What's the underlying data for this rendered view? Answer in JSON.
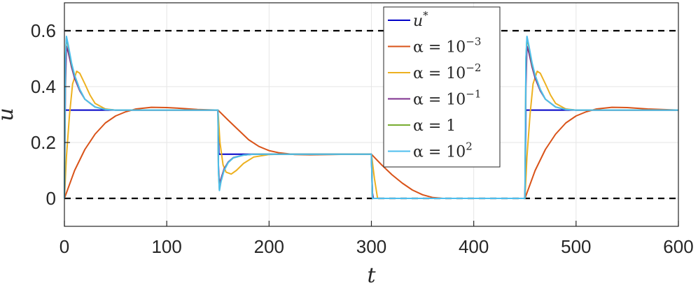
{
  "chart_data": {
    "type": "line",
    "xlabel": "t",
    "ylabel": "u",
    "xlim": [
      0,
      600
    ],
    "ylim": [
      -0.1,
      0.7
    ],
    "xticks": [
      0,
      100,
      200,
      300,
      400,
      500,
      600
    ],
    "yticks": [
      0,
      0.2,
      0.4,
      0.6
    ],
    "xtick_labels": [
      "0",
      "100",
      "200",
      "300",
      "400",
      "500",
      "600"
    ],
    "ytick_labels": [
      "0",
      "0.2",
      "0.4",
      "0.6"
    ],
    "grid": true,
    "legend_position": "top-right",
    "reference_lines": [
      {
        "y": 0.6,
        "style": "dashed",
        "color": "#000000"
      },
      {
        "y": 0,
        "style": "dashed",
        "color": "#000000"
      }
    ],
    "series": [
      {
        "name": "u*",
        "legend": {
          "base": "u",
          "sup": "*"
        },
        "color": "#0000c8",
        "x": [
          0,
          1,
          150,
          151,
          300,
          301,
          450,
          451,
          600
        ],
        "y": [
          0.316,
          0.316,
          0.316,
          0.158,
          0.158,
          0.0,
          0.0,
          0.316,
          0.316
        ]
      },
      {
        "name": "α = 10^-3",
        "legend": {
          "base": "α = 10",
          "sup": "−3"
        },
        "color": "#d95319",
        "x": [
          0,
          10,
          20,
          30,
          40,
          50,
          60,
          70,
          85,
          100,
          115,
          130,
          150,
          160,
          170,
          180,
          190,
          200,
          210,
          225,
          240,
          260,
          280,
          300,
          310,
          320,
          330,
          340,
          350,
          360,
          370,
          450,
          460,
          470,
          480,
          490,
          500,
          510,
          520,
          535,
          550,
          570,
          600
        ],
        "y": [
          0.0,
          0.1,
          0.175,
          0.23,
          0.27,
          0.295,
          0.31,
          0.32,
          0.326,
          0.325,
          0.322,
          0.318,
          0.316,
          0.28,
          0.245,
          0.21,
          0.186,
          0.171,
          0.163,
          0.157,
          0.156,
          0.157,
          0.158,
          0.158,
          0.12,
          0.085,
          0.055,
          0.03,
          0.013,
          0.003,
          0.0,
          0.0,
          0.1,
          0.175,
          0.23,
          0.27,
          0.295,
          0.31,
          0.32,
          0.326,
          0.325,
          0.32,
          0.316
        ]
      },
      {
        "name": "α = 10^-2",
        "legend": {
          "base": "α = 10",
          "sup": "−2"
        },
        "color": "#edb120",
        "x": [
          0,
          2,
          5,
          8,
          12,
          15,
          20,
          25,
          30,
          40,
          50,
          60,
          150,
          152,
          155,
          158,
          163,
          168,
          175,
          185,
          200,
          210,
          300,
          303,
          306,
          450,
          452,
          455,
          458,
          462,
          465,
          470,
          475,
          480,
          490,
          500,
          510,
          600
        ],
        "y": [
          0.0,
          0.15,
          0.3,
          0.41,
          0.455,
          0.448,
          0.41,
          0.37,
          0.34,
          0.32,
          0.316,
          0.316,
          0.316,
          0.2,
          0.12,
          0.094,
          0.087,
          0.1,
          0.125,
          0.148,
          0.157,
          0.158,
          0.158,
          0.07,
          0.0,
          0.0,
          0.15,
          0.3,
          0.41,
          0.455,
          0.448,
          0.41,
          0.37,
          0.34,
          0.32,
          0.316,
          0.316,
          0.316
        ]
      },
      {
        "name": "α = 10^-1",
        "legend": {
          "base": "α = 10",
          "sup": "−1"
        },
        "color": "#7e2f8e",
        "x": [
          0,
          1,
          2,
          4,
          7,
          10,
          15,
          20,
          30,
          40,
          50,
          150,
          150.5,
          151.5,
          153,
          156,
          160,
          165,
          175,
          185,
          300,
          301,
          302,
          450,
          451,
          452,
          454,
          457,
          460,
          465,
          470,
          480,
          490,
          500,
          600
        ],
        "y": [
          0.0,
          0.4,
          0.545,
          0.52,
          0.47,
          0.43,
          0.385,
          0.355,
          0.327,
          0.318,
          0.316,
          0.316,
          0.12,
          0.05,
          0.07,
          0.105,
          0.13,
          0.146,
          0.155,
          0.158,
          0.158,
          0.02,
          0.0,
          0.0,
          0.4,
          0.545,
          0.52,
          0.47,
          0.43,
          0.385,
          0.355,
          0.327,
          0.318,
          0.316,
          0.316
        ]
      },
      {
        "name": "α = 1",
        "legend": {
          "base": "α = 1",
          "sup": ""
        },
        "color": "#77ac30",
        "x": [
          0,
          1,
          2,
          4,
          7,
          10,
          15,
          20,
          30,
          40,
          50,
          150,
          150.5,
          151.5,
          153,
          156,
          160,
          165,
          175,
          185,
          300,
          301,
          450,
          451,
          452,
          454,
          457,
          460,
          465,
          470,
          480,
          490,
          500,
          600
        ],
        "y": [
          0.0,
          0.5,
          0.575,
          0.54,
          0.48,
          0.44,
          0.39,
          0.355,
          0.327,
          0.318,
          0.316,
          0.316,
          0.1,
          0.03,
          0.06,
          0.1,
          0.128,
          0.145,
          0.155,
          0.158,
          0.158,
          0.0,
          0.0,
          0.5,
          0.575,
          0.54,
          0.48,
          0.44,
          0.39,
          0.355,
          0.327,
          0.318,
          0.316,
          0.316
        ]
      },
      {
        "name": "α = 10^2",
        "legend": {
          "base": "α = 10",
          "sup": "2"
        },
        "color": "#4dbeee",
        "x": [
          0,
          1,
          2,
          4,
          7,
          10,
          15,
          20,
          30,
          40,
          50,
          150,
          150.5,
          151.5,
          153,
          156,
          160,
          165,
          175,
          185,
          300,
          301,
          450,
          451,
          452,
          454,
          457,
          460,
          465,
          470,
          480,
          490,
          500,
          600
        ],
        "y": [
          0.0,
          0.5,
          0.58,
          0.545,
          0.485,
          0.44,
          0.39,
          0.355,
          0.327,
          0.318,
          0.316,
          0.316,
          0.1,
          0.028,
          0.06,
          0.1,
          0.128,
          0.145,
          0.155,
          0.158,
          0.158,
          0.0,
          0.0,
          0.5,
          0.58,
          0.545,
          0.485,
          0.44,
          0.39,
          0.355,
          0.327,
          0.318,
          0.316,
          0.316
        ]
      }
    ]
  }
}
